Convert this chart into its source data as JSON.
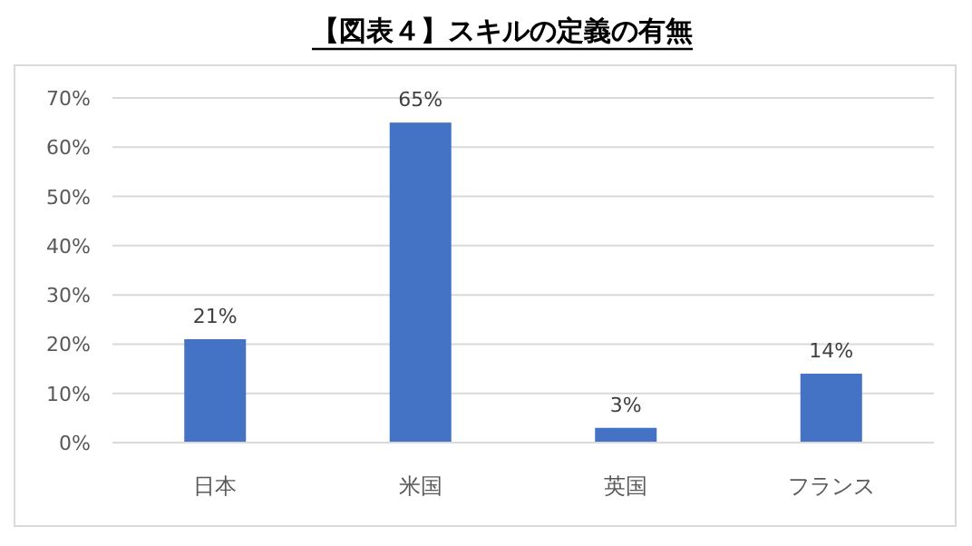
{
  "chart_data": {
    "type": "bar",
    "title": "【図表４】スキルの定義の有無",
    "categories": [
      "日本",
      "米国",
      "英国",
      "フランス"
    ],
    "values": [
      21,
      65,
      3,
      14
    ],
    "value_labels": [
      "21%",
      "65%",
      "3%",
      "14%"
    ],
    "color": "#4472c4",
    "ylim": [
      0,
      70
    ],
    "yticks": [
      {
        "value": 0,
        "label": "0%"
      },
      {
        "value": 10,
        "label": "10%"
      },
      {
        "value": 20,
        "label": "20%"
      },
      {
        "value": 30,
        "label": "30%"
      },
      {
        "value": 40,
        "label": "40%"
      },
      {
        "value": 50,
        "label": "50%"
      },
      {
        "value": 60,
        "label": "60%"
      },
      {
        "value": 70,
        "label": "70%"
      }
    ],
    "grid": "y"
  }
}
